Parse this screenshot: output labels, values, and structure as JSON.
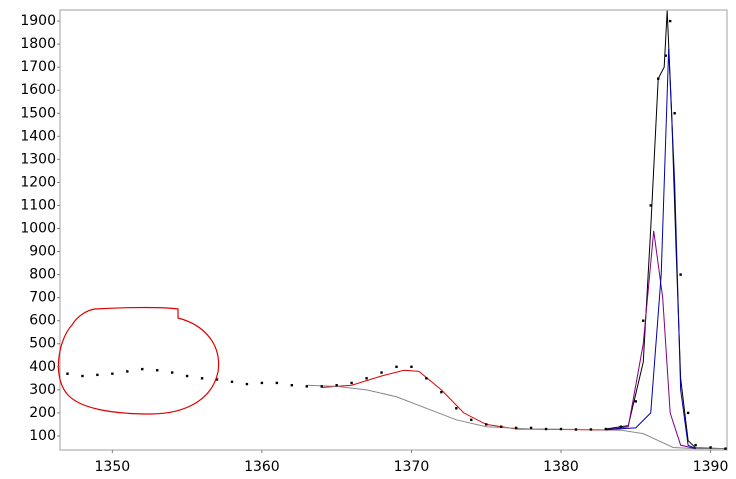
{
  "chart_data": {
    "type": "scatter",
    "xlim": [
      1346.5,
      1391.1
    ],
    "ylim": [
      39,
      1948
    ],
    "xticks": [
      1350,
      1360,
      1370,
      1380,
      1390
    ],
    "yticks": [
      100,
      200,
      300,
      400,
      500,
      600,
      700,
      800,
      900,
      1000,
      1100,
      1200,
      1300,
      1400,
      1500,
      1600,
      1700,
      1800,
      1900
    ],
    "points": {
      "color": "#000000",
      "x": [
        1347,
        1348,
        1349,
        1350,
        1351,
        1352,
        1353,
        1354,
        1355,
        1356,
        1357,
        1358,
        1359,
        1360,
        1361,
        1362,
        1363,
        1364,
        1365,
        1366,
        1367,
        1368,
        1369,
        1370,
        1371,
        1372,
        1373,
        1374,
        1375,
        1376,
        1377,
        1378,
        1379,
        1380,
        1381,
        1382,
        1383,
        1384,
        1385,
        1385.5,
        1386,
        1386.5,
        1387,
        1387.3,
        1387.6,
        1388,
        1388.5,
        1389,
        1390,
        1391
      ],
      "values": [
        370,
        360,
        365,
        370,
        380,
        390,
        385,
        375,
        360,
        350,
        345,
        335,
        325,
        330,
        330,
        320,
        315,
        315,
        320,
        330,
        350,
        375,
        400,
        400,
        350,
        290,
        220,
        170,
        150,
        140,
        135,
        135,
        130,
        130,
        128,
        128,
        130,
        140,
        250,
        600,
        1100,
        1650,
        1750,
        1900,
        1500,
        800,
        200,
        60,
        50,
        45
      ]
    },
    "series": [
      {
        "color": "#000000",
        "x": [
          1383,
          1384.5,
          1385.5,
          1386,
          1386.5,
          1386.9,
          1387.1,
          1387.4,
          1387.7,
          1388,
          1388.5,
          1389,
          1391
        ],
        "values": [
          130,
          145,
          420,
          1000,
          1650,
          1700,
          1945,
          1500,
          900,
          350,
          80,
          48,
          45
        ]
      },
      {
        "color": "#e00000",
        "x": [
          1364,
          1366,
          1368,
          1369.5,
          1370.5,
          1372,
          1373.5,
          1375,
          1377,
          1380,
          1384
        ],
        "values": [
          310,
          320,
          360,
          385,
          380,
          300,
          200,
          150,
          130,
          128,
          125
        ]
      },
      {
        "color": "#888888",
        "x": [
          1363,
          1365,
          1367,
          1369,
          1371,
          1373,
          1375,
          1378,
          1382,
          1384,
          1385.5,
          1386.5,
          1387.5,
          1389,
          1391
        ],
        "values": [
          320,
          315,
          300,
          270,
          220,
          170,
          140,
          130,
          128,
          125,
          110,
          80,
          50,
          45,
          45
        ]
      },
      {
        "color": "#800080",
        "x": [
          1383,
          1384.5,
          1385.5,
          1386.2,
          1386.8,
          1387.3,
          1388,
          1389
        ],
        "values": [
          125,
          140,
          500,
          990,
          700,
          200,
          60,
          45
        ]
      },
      {
        "color": "#0000aa",
        "x": [
          1383,
          1385,
          1386,
          1386.7,
          1387.2,
          1387.6,
          1388,
          1388.5,
          1389
        ],
        "values": [
          128,
          135,
          200,
          800,
          1780,
          1200,
          300,
          60,
          45
        ]
      }
    ]
  }
}
